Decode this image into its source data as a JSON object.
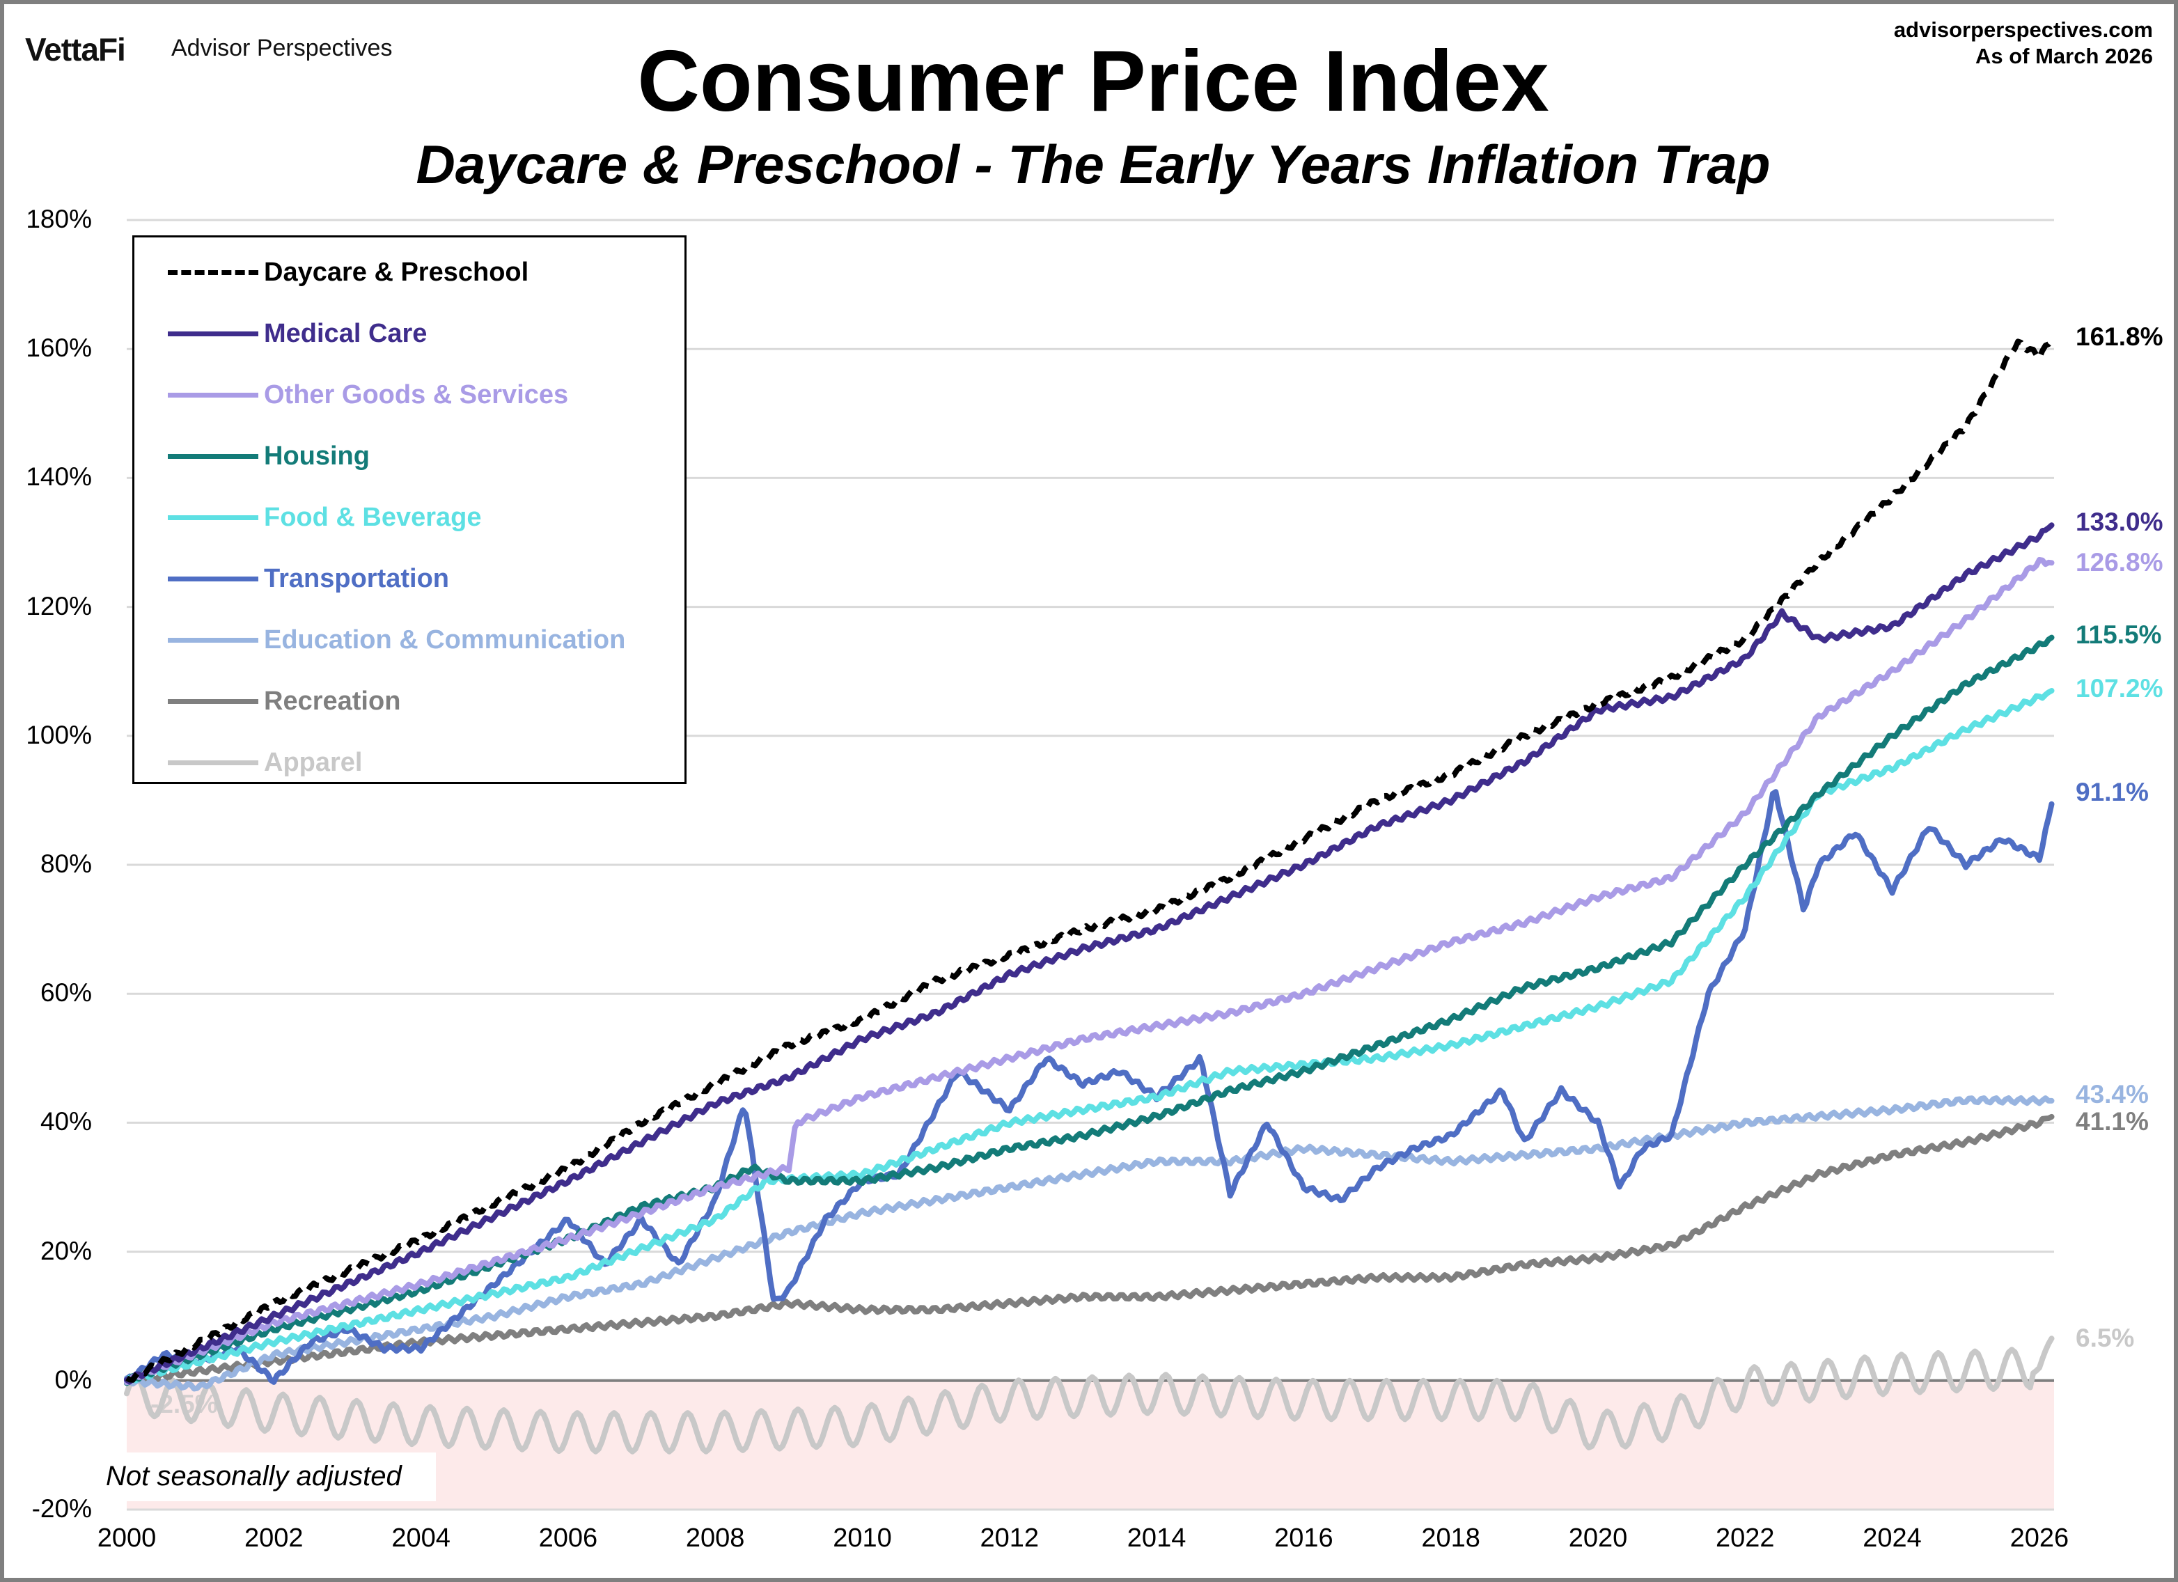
{
  "header": {
    "logo": "VettaFi",
    "brand": "Advisor Perspectives",
    "site": "advisorperspectives.com",
    "as_of": "As of March 2026"
  },
  "chart_data": {
    "type": "line",
    "title": "Consumer Price Index",
    "subtitle": "Daycare & Preschool - The Early Years Inflation Trap",
    "note": "Not seasonally adjusted",
    "xlabel": "",
    "ylabel": "",
    "xlim": [
      2000,
      2026.2
    ],
    "ylim": [
      -20,
      180
    ],
    "yticks": [
      "180%",
      "160%",
      "140%",
      "120%",
      "100%",
      "80%",
      "60%",
      "40%",
      "20%",
      "0%",
      "-20%"
    ],
    "ytick_values": [
      180,
      160,
      140,
      120,
      100,
      80,
      60,
      40,
      20,
      0,
      -20
    ],
    "xticks": [
      "2000",
      "2002",
      "2004",
      "2006",
      "2008",
      "2010",
      "2012",
      "2014",
      "2016",
      "2018",
      "2020",
      "2022",
      "2024",
      "2026"
    ],
    "grid": true,
    "legend_position": "top-left",
    "series": [
      {
        "name": "Daycare & Preschool",
        "color": "#000000",
        "dashed": true,
        "end_label": "161.8%",
        "end_value": 161.8,
        "points": [
          [
            2000,
            0
          ],
          [
            2002,
            12
          ],
          [
            2004,
            22
          ],
          [
            2006,
            33
          ],
          [
            2007,
            40
          ],
          [
            2008,
            46
          ],
          [
            2009,
            52
          ],
          [
            2010,
            56
          ],
          [
            2011,
            62
          ],
          [
            2012,
            66
          ],
          [
            2013,
            70
          ],
          [
            2014,
            73
          ],
          [
            2015,
            78
          ],
          [
            2016,
            84
          ],
          [
            2017,
            90
          ],
          [
            2018,
            94
          ],
          [
            2019,
            100
          ],
          [
            2020,
            105
          ],
          [
            2021,
            109
          ],
          [
            2022,
            115
          ],
          [
            2023,
            127
          ],
          [
            2024,
            137
          ],
          [
            2025,
            148
          ],
          [
            2025.7,
            161
          ],
          [
            2026,
            159
          ],
          [
            2026.2,
            161.8
          ]
        ]
      },
      {
        "name": "Medical Care",
        "color": "#3f2d8c",
        "end_label": "133.0%",
        "end_value": 133.0,
        "points": [
          [
            2000,
            0
          ],
          [
            2002,
            10
          ],
          [
            2004,
            20
          ],
          [
            2006,
            31
          ],
          [
            2008,
            43
          ],
          [
            2009,
            47
          ],
          [
            2010,
            53
          ],
          [
            2011,
            57
          ],
          [
            2012,
            63
          ],
          [
            2013,
            67
          ],
          [
            2014,
            70
          ],
          [
            2015,
            75
          ],
          [
            2016,
            80
          ],
          [
            2017,
            86
          ],
          [
            2018,
            90
          ],
          [
            2019,
            96
          ],
          [
            2020,
            104
          ],
          [
            2021,
            106
          ],
          [
            2022,
            112
          ],
          [
            2022.5,
            119
          ],
          [
            2023,
            115
          ],
          [
            2024,
            117
          ],
          [
            2025,
            125
          ],
          [
            2026,
            131
          ],
          [
            2026.2,
            133
          ]
        ]
      },
      {
        "name": "Other Goods & Services",
        "color": "#a99be6",
        "end_label": "126.8%",
        "end_value": 126.8,
        "points": [
          [
            2000,
            0
          ],
          [
            2002,
            9
          ],
          [
            2004,
            15
          ],
          [
            2006,
            22
          ],
          [
            2008,
            30
          ],
          [
            2009,
            33
          ],
          [
            2009.1,
            40
          ],
          [
            2010,
            44
          ],
          [
            2011,
            47
          ],
          [
            2012,
            50
          ],
          [
            2013,
            53
          ],
          [
            2014,
            55
          ],
          [
            2015,
            57
          ],
          [
            2016,
            60
          ],
          [
            2017,
            64
          ],
          [
            2018,
            68
          ],
          [
            2019,
            71
          ],
          [
            2020,
            75
          ],
          [
            2021,
            78
          ],
          [
            2022,
            88
          ],
          [
            2023,
            103
          ],
          [
            2024,
            110
          ],
          [
            2025,
            118
          ],
          [
            2026,
            127
          ],
          [
            2026.2,
            126.8
          ]
        ]
      },
      {
        "name": "Housing",
        "color": "#137b78",
        "end_label": "115.5%",
        "end_value": 115.5,
        "points": [
          [
            2000,
            0
          ],
          [
            2002,
            8
          ],
          [
            2004,
            14
          ],
          [
            2006,
            22
          ],
          [
            2007,
            27
          ],
          [
            2008,
            30
          ],
          [
            2008.5,
            33
          ],
          [
            2009,
            31
          ],
          [
            2010,
            31
          ],
          [
            2011,
            33
          ],
          [
            2012,
            36
          ],
          [
            2013,
            38
          ],
          [
            2014,
            41
          ],
          [
            2015,
            45
          ],
          [
            2016,
            48
          ],
          [
            2017,
            52
          ],
          [
            2018,
            56
          ],
          [
            2019,
            61
          ],
          [
            2020,
            64
          ],
          [
            2021,
            68
          ],
          [
            2022,
            80
          ],
          [
            2023,
            91
          ],
          [
            2024,
            100
          ],
          [
            2025,
            108
          ],
          [
            2026,
            114
          ],
          [
            2026.2,
            115.5
          ]
        ]
      },
      {
        "name": "Food & Beverage",
        "color": "#5de0e3",
        "end_label": "107.2%",
        "end_value": 107.2,
        "points": [
          [
            2000,
            0
          ],
          [
            2002,
            6
          ],
          [
            2004,
            11
          ],
          [
            2006,
            16
          ],
          [
            2008,
            25
          ],
          [
            2008.7,
            31
          ],
          [
            2010,
            32
          ],
          [
            2011,
            36
          ],
          [
            2012,
            40
          ],
          [
            2013,
            42
          ],
          [
            2014,
            44
          ],
          [
            2015,
            48
          ],
          [
            2016,
            49
          ],
          [
            2017,
            50
          ],
          [
            2018,
            52
          ],
          [
            2019,
            55
          ],
          [
            2020,
            58
          ],
          [
            2021,
            62
          ],
          [
            2022,
            75
          ],
          [
            2023,
            91
          ],
          [
            2024,
            95
          ],
          [
            2025,
            101
          ],
          [
            2026,
            106
          ],
          [
            2026.2,
            107.2
          ]
        ]
      },
      {
        "name": "Transportation",
        "color": "#4f6ec4",
        "end_label": "91.1%",
        "end_value": 91.1,
        "points": [
          [
            2000,
            0
          ],
          [
            2000.5,
            4
          ],
          [
            2001,
            3
          ],
          [
            2001.5,
            5
          ],
          [
            2002,
            0
          ],
          [
            2002.5,
            6
          ],
          [
            2003,
            8
          ],
          [
            2003.5,
            5
          ],
          [
            2004,
            5
          ],
          [
            2004.5,
            10
          ],
          [
            2005,
            15
          ],
          [
            2005.5,
            20
          ],
          [
            2006,
            25
          ],
          [
            2006.5,
            18
          ],
          [
            2007,
            25
          ],
          [
            2007.5,
            18
          ],
          [
            2008,
            28
          ],
          [
            2008.4,
            43
          ],
          [
            2008.8,
            12
          ],
          [
            2009,
            14
          ],
          [
            2009.5,
            25
          ],
          [
            2010,
            31
          ],
          [
            2010.5,
            32
          ],
          [
            2011,
            42
          ],
          [
            2011.3,
            48
          ],
          [
            2012,
            42
          ],
          [
            2012.5,
            50
          ],
          [
            2013,
            46
          ],
          [
            2013.5,
            48
          ],
          [
            2014,
            44
          ],
          [
            2014.6,
            50
          ],
          [
            2015,
            29
          ],
          [
            2015.5,
            40
          ],
          [
            2016,
            30
          ],
          [
            2016.5,
            28
          ],
          [
            2017,
            33
          ],
          [
            2017.5,
            36
          ],
          [
            2018,
            38
          ],
          [
            2018.7,
            45
          ],
          [
            2019,
            37
          ],
          [
            2019.5,
            45
          ],
          [
            2020,
            40
          ],
          [
            2020.3,
            30
          ],
          [
            2020.6,
            36
          ],
          [
            2021,
            38
          ],
          [
            2021.5,
            60
          ],
          [
            2022,
            70
          ],
          [
            2022.4,
            92
          ],
          [
            2022.8,
            73
          ],
          [
            2023,
            80
          ],
          [
            2023.5,
            85
          ],
          [
            2024,
            76
          ],
          [
            2024.5,
            86
          ],
          [
            2025,
            80
          ],
          [
            2025.5,
            84
          ],
          [
            2026,
            81
          ],
          [
            2026.2,
            91.1
          ]
        ]
      },
      {
        "name": "Education & Communication",
        "color": "#98b4e0",
        "end_label": "43.4%",
        "end_value": 43.4,
        "points": [
          [
            2000,
            0
          ],
          [
            2001,
            -1
          ],
          [
            2002,
            4
          ],
          [
            2003,
            6
          ],
          [
            2004,
            8
          ],
          [
            2005,
            10
          ],
          [
            2006,
            13
          ],
          [
            2007,
            15
          ],
          [
            2008,
            19
          ],
          [
            2009,
            23
          ],
          [
            2010,
            26
          ],
          [
            2011,
            28
          ],
          [
            2012,
            30
          ],
          [
            2013,
            32
          ],
          [
            2014,
            34
          ],
          [
            2015,
            34
          ],
          [
            2016,
            36
          ],
          [
            2017,
            35
          ],
          [
            2018,
            34
          ],
          [
            2019,
            35
          ],
          [
            2020,
            36
          ],
          [
            2021,
            38
          ],
          [
            2022,
            40
          ],
          [
            2023,
            41
          ],
          [
            2024,
            42
          ],
          [
            2025,
            43.5
          ],
          [
            2026.2,
            43.4
          ]
        ]
      },
      {
        "name": "Recreation",
        "color": "#7f7f7f",
        "end_label": "41.1%",
        "end_value": 41.1,
        "points": [
          [
            2000,
            0
          ],
          [
            2002,
            3
          ],
          [
            2004,
            6
          ],
          [
            2006,
            8
          ],
          [
            2008,
            10
          ],
          [
            2009,
            12
          ],
          [
            2010,
            11
          ],
          [
            2011,
            11
          ],
          [
            2012,
            12
          ],
          [
            2013,
            13
          ],
          [
            2014,
            13
          ],
          [
            2015,
            14
          ],
          [
            2016,
            15
          ],
          [
            2017,
            16
          ],
          [
            2018,
            16
          ],
          [
            2019,
            18
          ],
          [
            2020,
            19
          ],
          [
            2021,
            21
          ],
          [
            2022,
            27
          ],
          [
            2023,
            32
          ],
          [
            2024,
            35
          ],
          [
            2025,
            37
          ],
          [
            2026,
            40
          ],
          [
            2026.2,
            41.1
          ]
        ]
      },
      {
        "name": "Apparel",
        "color": "#c8c8c8",
        "end_label": "6.5%",
        "end_value": 6.5,
        "start_label": "-2.5%",
        "seasonal_amplitude": 3,
        "points": [
          [
            2000,
            -2
          ],
          [
            2002,
            -5
          ],
          [
            2004,
            -7
          ],
          [
            2006,
            -8
          ],
          [
            2008,
            -8
          ],
          [
            2010,
            -7
          ],
          [
            2012,
            -3
          ],
          [
            2014,
            -2
          ],
          [
            2016,
            -3
          ],
          [
            2018,
            -3
          ],
          [
            2019,
            -3
          ],
          [
            2020,
            -8
          ],
          [
            2021,
            -6
          ],
          [
            2022,
            -1
          ],
          [
            2024,
            1
          ],
          [
            2026,
            2
          ],
          [
            2026.2,
            6.5
          ]
        ]
      }
    ]
  }
}
